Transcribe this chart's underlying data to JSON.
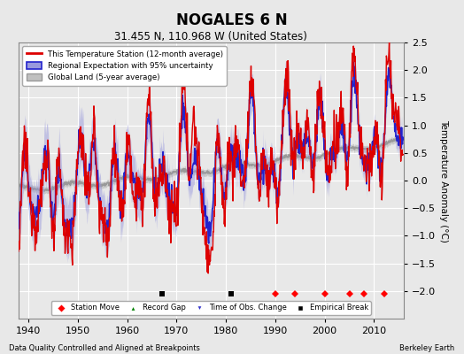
{
  "title": "NOGALES 6 N",
  "subtitle": "31.455 N, 110.968 W (United States)",
  "footer_left": "Data Quality Controlled and Aligned at Breakpoints",
  "footer_right": "Berkeley Earth",
  "ylabel": "Temperature Anomaly (°C)",
  "xlim": [
    1938,
    2016
  ],
  "ylim": [
    -2.5,
    2.5
  ],
  "yticks": [
    -2,
    -1.5,
    -1,
    -0.5,
    0,
    0.5,
    1,
    1.5,
    2,
    2.5
  ],
  "xticks": [
    1940,
    1950,
    1960,
    1970,
    1980,
    1990,
    2000,
    2010
  ],
  "background_color": "#e8e8e8",
  "plot_background": "#e8e8e8",
  "red_line_color": "#dd0000",
  "blue_line_color": "#2222cc",
  "blue_fill_color": "#9999dd",
  "gray_line_color": "#999999",
  "gray_fill_color": "#c0c0c0",
  "station_move_years": [
    1990,
    1994,
    2000,
    2005,
    2008,
    2012
  ],
  "empirical_break_years": [
    1967,
    1981
  ],
  "time_of_obs_years": [],
  "record_gap_years": []
}
